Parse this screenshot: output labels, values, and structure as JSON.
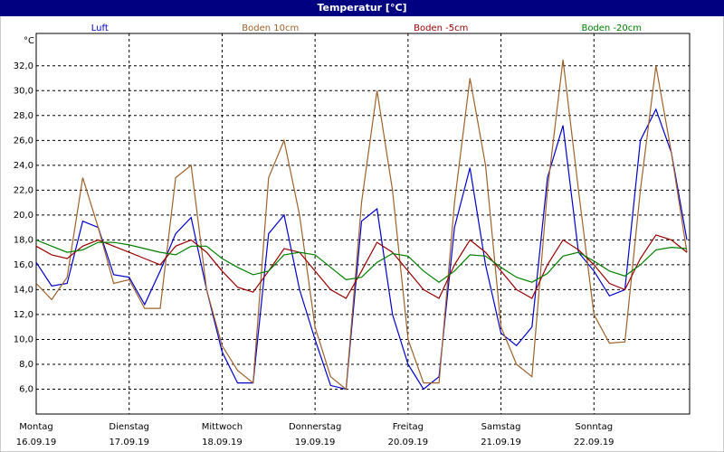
{
  "chart_data": {
    "type": "line",
    "title": "Temperatur [°C]",
    "y_unit": "°C",
    "xlim": [
      0,
      168.7
    ],
    "ylim": [
      4,
      34.6
    ],
    "grid": true,
    "legend": "top",
    "xticks": [
      {
        "value": 0,
        "label": "Montag",
        "date": "16.09.19"
      },
      {
        "value": 24,
        "label": "Dienstag",
        "date": "17.09.19"
      },
      {
        "value": 48,
        "label": "Mittwoch",
        "date": "18.09.19"
      },
      {
        "value": 72,
        "label": "Donnerstag",
        "date": "19.09.19"
      },
      {
        "value": 96,
        "label": "Freitag",
        "date": "20.09.19"
      },
      {
        "value": 120,
        "label": "Samstag",
        "date": "21.09.19"
      },
      {
        "value": 144,
        "label": "Sonntag",
        "date": "22.09.19"
      }
    ],
    "yticks": [
      {
        "value": 6,
        "label": "6,0"
      },
      {
        "value": 8,
        "label": "8,0"
      },
      {
        "value": 10,
        "label": "10,0"
      },
      {
        "value": 12,
        "label": "12,0"
      },
      {
        "value": 14,
        "label": "14,0"
      },
      {
        "value": 16,
        "label": "16,0"
      },
      {
        "value": 18,
        "label": "18,0"
      },
      {
        "value": 20,
        "label": "20,0"
      },
      {
        "value": 22,
        "label": "22,0"
      },
      {
        "value": 24,
        "label": "24,0"
      },
      {
        "value": 26,
        "label": "26,0"
      },
      {
        "value": 28,
        "label": "28,0"
      },
      {
        "value": 30,
        "label": "30,0"
      },
      {
        "value": 32,
        "label": "32,0"
      }
    ],
    "x": [
      0,
      4,
      8,
      12,
      16,
      20,
      24,
      28,
      32,
      36,
      40,
      44,
      48,
      52,
      56,
      60,
      64,
      68,
      72,
      76,
      80,
      84,
      88,
      92,
      96,
      100,
      104,
      108,
      112,
      116,
      120,
      124,
      128,
      132,
      136,
      140,
      144,
      148,
      152,
      156,
      160,
      164,
      168
    ],
    "series": [
      {
        "name": "Luft",
        "color": "#0000cc",
        "values": [
          16.2,
          14.3,
          14.5,
          19.5,
          19,
          15.2,
          15,
          12.8,
          15.5,
          18.5,
          19.8,
          14,
          9,
          6.5,
          6.5,
          18.5,
          20,
          14,
          10,
          6.3,
          6,
          19.5,
          20.5,
          12,
          8,
          6,
          7,
          19,
          23.8,
          16,
          10.5,
          9.5,
          11,
          23,
          27.2,
          17,
          15.5,
          13.5,
          14,
          26,
          28.5,
          25,
          18
        ]
      },
      {
        "name": "Boden 10cm",
        "color": "#a0622d",
        "values": [
          14.5,
          13.2,
          15,
          23,
          19,
          14.5,
          14.8,
          12.5,
          12.5,
          23,
          24,
          14,
          9.5,
          7.5,
          6.5,
          23,
          26,
          20,
          11,
          7,
          6,
          21,
          30,
          22,
          10,
          6.5,
          6.5,
          21,
          31,
          24,
          11,
          8,
          7,
          22,
          32.5,
          22,
          12,
          9.7,
          9.8,
          22,
          32,
          25,
          17
        ]
      },
      {
        "name": "Boden -5cm",
        "color": "#990000",
        "values": [
          17.5,
          16.8,
          16.5,
          17.5,
          18,
          17.5,
          17,
          16.5,
          16,
          17.5,
          18,
          17,
          15.5,
          14.2,
          13.8,
          15.5,
          17.3,
          17,
          15.5,
          14,
          13.3,
          15.5,
          17.8,
          17,
          15.5,
          14,
          13.3,
          16,
          18,
          17,
          15.5,
          14,
          13.3,
          16,
          18,
          17.2,
          16,
          14.5,
          14,
          16.5,
          18.4,
          18,
          17
        ]
      },
      {
        "name": "Boden -20cm",
        "color": "#008000",
        "values": [
          18,
          17.5,
          17,
          17.2,
          17.8,
          17.8,
          17.6,
          17.3,
          17,
          16.8,
          17.5,
          17.5,
          16.5,
          15.8,
          15.2,
          15.5,
          16.8,
          17,
          16.8,
          15.8,
          14.8,
          15,
          16.2,
          16.9,
          16.7,
          15.5,
          14.6,
          15.5,
          16.8,
          16.7,
          15.8,
          15,
          14.6,
          15.3,
          16.7,
          17,
          16.3,
          15.5,
          15.1,
          16,
          17.2,
          17.4,
          17.3
        ]
      }
    ]
  }
}
